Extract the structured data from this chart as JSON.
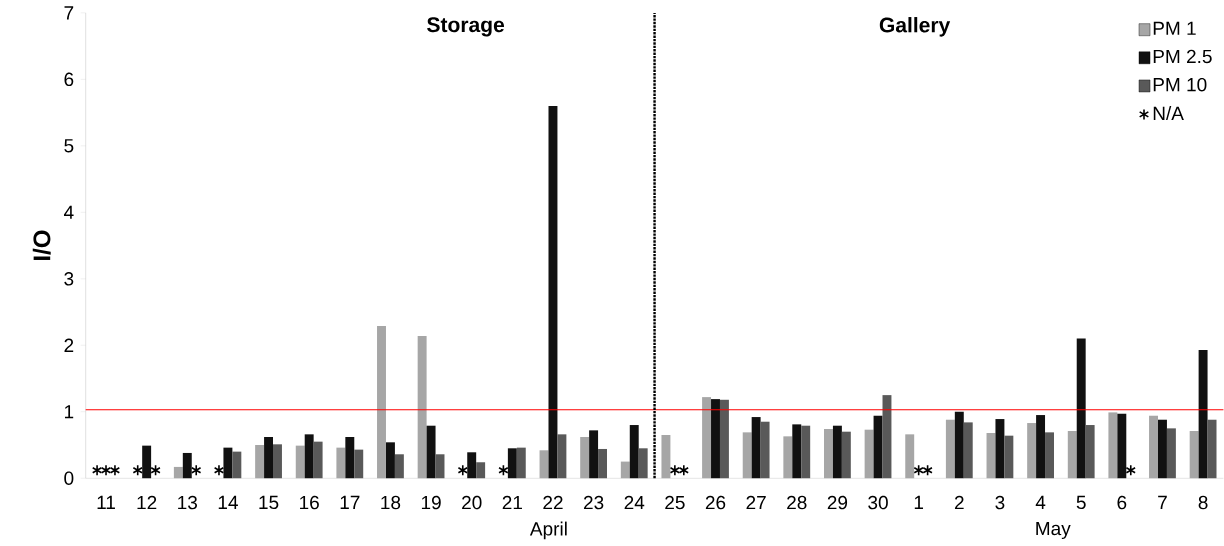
{
  "chart_data": {
    "type": "bar",
    "ylabel": "I/O",
    "categories": [
      "11",
      "12",
      "13",
      "14",
      "15",
      "16",
      "17",
      "18",
      "19",
      "20",
      "21",
      "22",
      "23",
      "24",
      "25",
      "26",
      "27",
      "28",
      "29",
      "30",
      "1",
      "2",
      "3",
      "4",
      "5",
      "6",
      "7",
      "8"
    ],
    "series": [
      {
        "name": "PM 1",
        "color": "#a6a6a6",
        "values": [
          null,
          null,
          0.17,
          null,
          0.5,
          0.49,
          0.46,
          2.29,
          2.14,
          null,
          null,
          0.42,
          0.62,
          0.25,
          0.65,
          1.22,
          0.69,
          0.63,
          0.74,
          0.73,
          0.66,
          0.88,
          0.68,
          0.83,
          0.71,
          0.99,
          0.94,
          0.71
        ]
      },
      {
        "name": "PM 2.5",
        "color": "#111111",
        "values": [
          null,
          0.49,
          0.38,
          0.46,
          0.62,
          0.66,
          0.62,
          0.54,
          0.79,
          0.39,
          0.45,
          5.6,
          0.72,
          0.8,
          null,
          1.19,
          0.92,
          0.81,
          0.79,
          0.94,
          null,
          1.0,
          0.89,
          0.95,
          2.1,
          0.97,
          0.88,
          1.93
        ]
      },
      {
        "name": "PM 10",
        "color": "#595959",
        "values": [
          null,
          null,
          null,
          0.4,
          0.51,
          0.55,
          0.43,
          0.36,
          0.36,
          0.24,
          0.46,
          0.66,
          0.44,
          0.45,
          null,
          1.18,
          0.85,
          0.79,
          0.7,
          1.25,
          null,
          0.84,
          0.64,
          0.69,
          0.8,
          null,
          0.75,
          0.88
        ]
      },
      {
        "name": "N/A",
        "type": "scatter",
        "color": "#000000",
        "marker": "cross",
        "x": [
          "11",
          "11",
          "11",
          "12",
          "12",
          "13",
          "14",
          "20",
          "21",
          "25",
          "25",
          "1",
          "1",
          "6"
        ],
        "values": [
          0.12,
          0.12,
          0.12,
          0.12,
          0.12,
          0.12,
          0.12,
          0.12,
          0.12,
          0.12,
          0.12,
          0.12,
          0.12,
          0.12
        ]
      }
    ],
    "ylim": [
      0,
      7
    ],
    "yticks": [
      0,
      1,
      2,
      3,
      4,
      5,
      6,
      7
    ],
    "ref_lines": [
      {
        "axis": "y",
        "value": 1.03,
        "color": "#ff0000",
        "line_style": "solid"
      }
    ],
    "annotations": [
      "Storage",
      "Gallery",
      "April",
      "May"
    ],
    "legend": "top right",
    "grid": false
  }
}
